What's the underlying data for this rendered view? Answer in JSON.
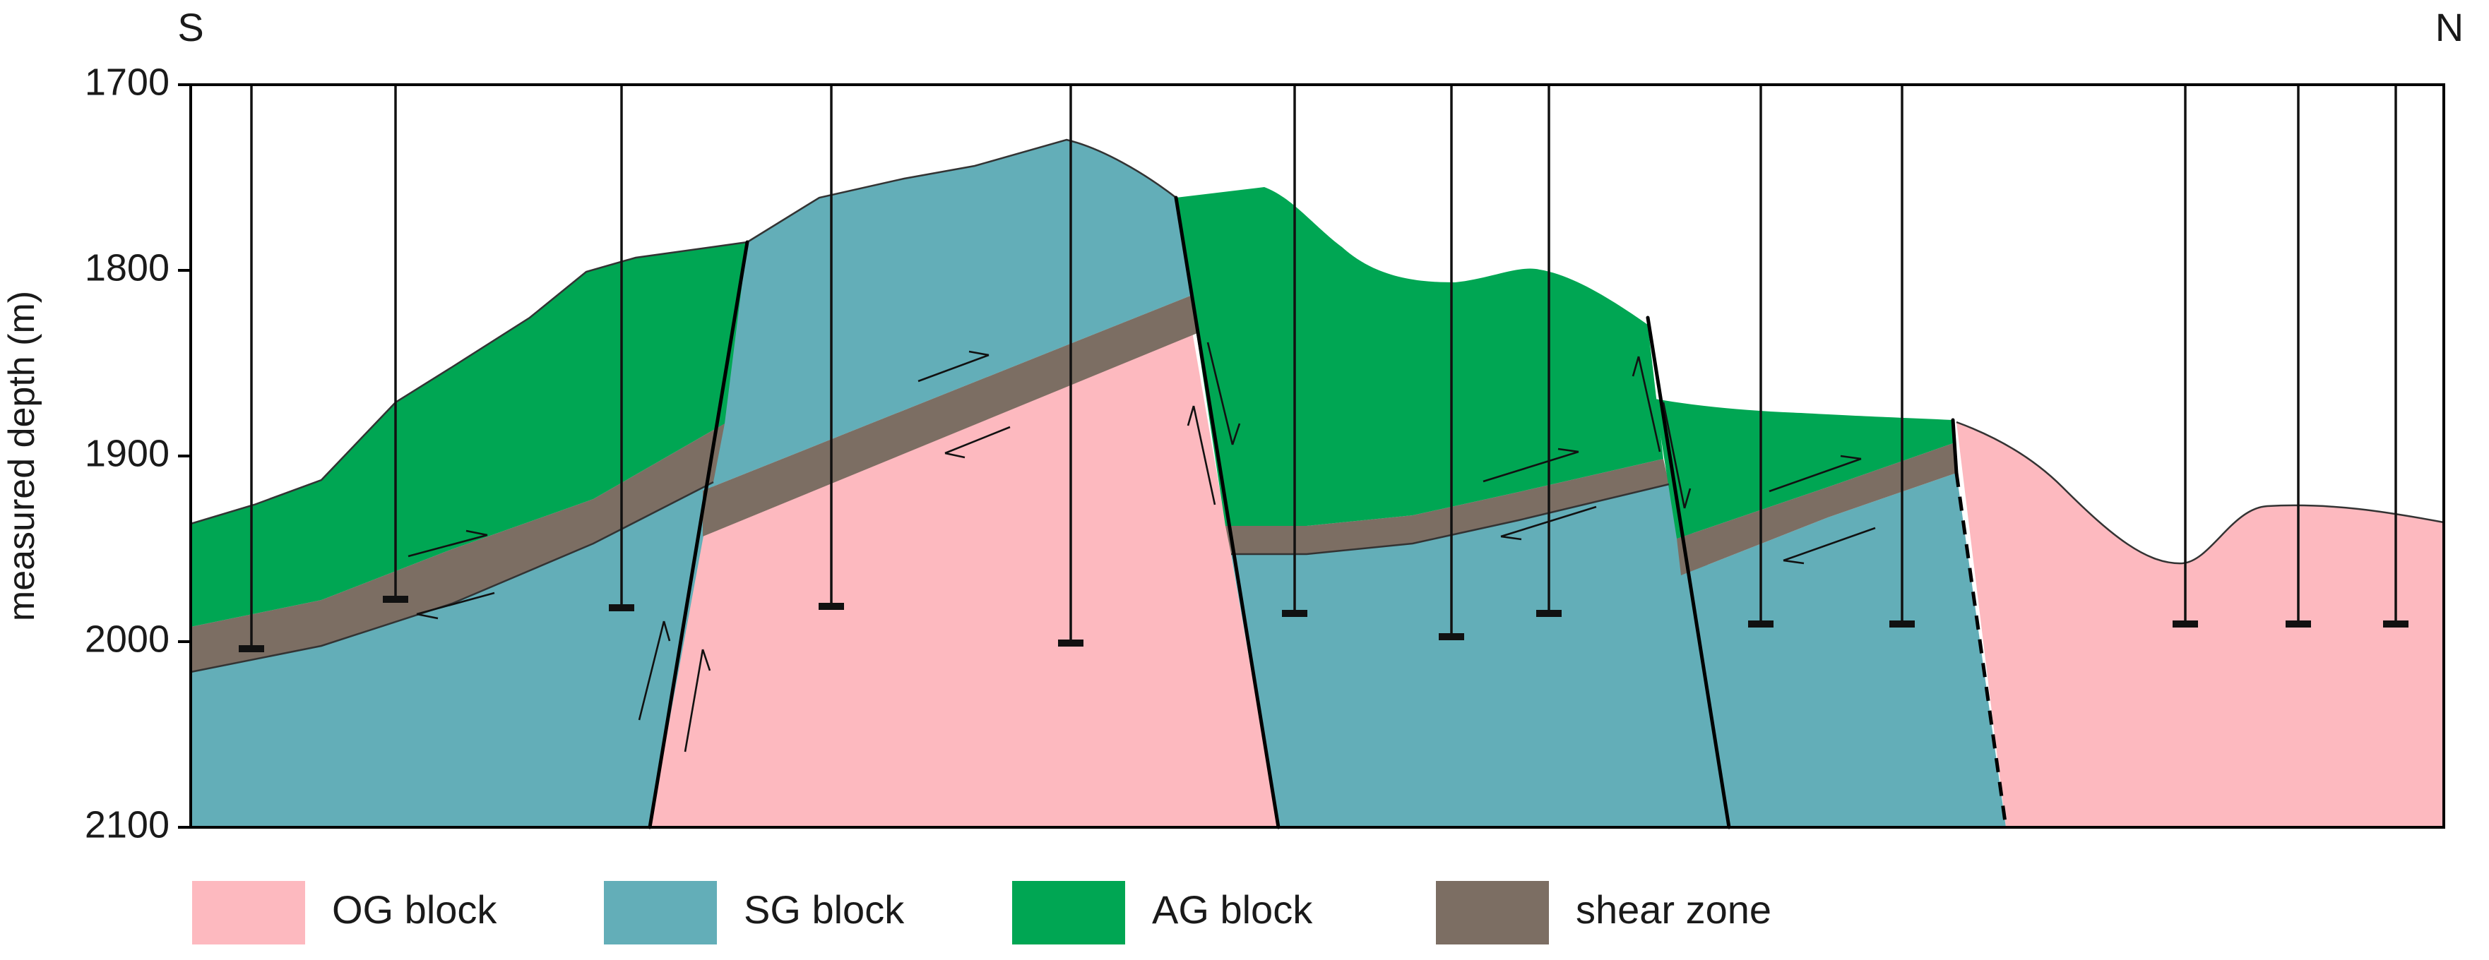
{
  "compass": {
    "left": "S",
    "right": "N"
  },
  "y_axis": {
    "title": "measured depth (m)",
    "ticks": [
      "1700",
      "1800",
      "1900",
      "2000",
      "2100"
    ]
  },
  "legend": [
    {
      "key": "og",
      "label": "OG block",
      "color": "#FDB9BF"
    },
    {
      "key": "sg",
      "label": "SG block",
      "color": "#63AEB8"
    },
    {
      "key": "ag",
      "label": "AG block",
      "color": "#00A653"
    },
    {
      "key": "shear",
      "label": "shear zone",
      "color": "#7C6E63"
    }
  ],
  "colors": {
    "fault_line": "#000000",
    "well_line": "#111111"
  }
}
